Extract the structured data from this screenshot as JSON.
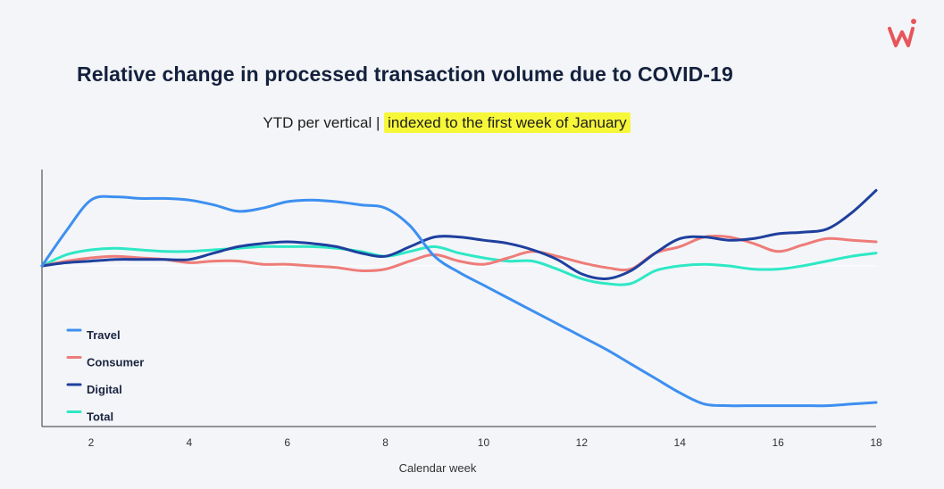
{
  "logo": {
    "icon": "brand-w-icon",
    "color": "#e8555a"
  },
  "chart_data": {
    "type": "line",
    "title": "Relative change in processed transaction volume due to COVID-19",
    "subtitle_prefix": "YTD per vertical | ",
    "subtitle_highlight": "indexed to the first week of January",
    "xlabel": "Calendar week",
    "ylabel": "",
    "xlim": [
      1,
      18
    ],
    "ylim": [
      -1.0,
      0.6
    ],
    "x_ticks": [
      2,
      4,
      6,
      8,
      10,
      12,
      14,
      16,
      18
    ],
    "baseline": 0,
    "x": [
      1,
      1.5,
      2,
      2.5,
      3,
      3.5,
      4,
      4.5,
      5,
      5.5,
      6,
      6.5,
      7,
      7.5,
      8,
      8.5,
      9,
      9.5,
      10,
      10.5,
      11,
      11.5,
      12,
      12.5,
      13,
      13.5,
      14,
      14.5,
      15,
      15.5,
      16,
      16.5,
      17,
      17.5,
      18
    ],
    "series": [
      {
        "name": "Travel",
        "color": "#3d8ff0",
        "values": [
          0.0,
          0.22,
          0.41,
          0.43,
          0.42,
          0.42,
          0.41,
          0.38,
          0.34,
          0.36,
          0.4,
          0.41,
          0.4,
          0.38,
          0.36,
          0.25,
          0.06,
          -0.04,
          -0.12,
          -0.2,
          -0.28,
          -0.36,
          -0.44,
          -0.52,
          -0.61,
          -0.7,
          -0.79,
          -0.86,
          -0.87,
          -0.87,
          -0.87,
          -0.87,
          -0.87,
          -0.86,
          -0.85
        ]
      },
      {
        "name": "Consumer",
        "color": "#ee7c78",
        "values": [
          0.0,
          0.03,
          0.05,
          0.06,
          0.05,
          0.04,
          0.02,
          0.03,
          0.03,
          0.01,
          0.01,
          0.0,
          -0.01,
          -0.03,
          -0.02,
          0.03,
          0.07,
          0.03,
          0.01,
          0.05,
          0.09,
          0.06,
          0.02,
          -0.01,
          -0.02,
          0.08,
          0.12,
          0.18,
          0.18,
          0.14,
          0.09,
          0.13,
          0.17,
          0.16,
          0.15
        ]
      },
      {
        "name": "Digital",
        "color": "#1e3f9e",
        "values": [
          0.0,
          0.02,
          0.03,
          0.04,
          0.04,
          0.04,
          0.04,
          0.08,
          0.12,
          0.14,
          0.15,
          0.14,
          0.12,
          0.08,
          0.06,
          0.12,
          0.18,
          0.18,
          0.16,
          0.14,
          0.1,
          0.04,
          -0.05,
          -0.08,
          -0.03,
          0.08,
          0.17,
          0.18,
          0.16,
          0.17,
          0.2,
          0.21,
          0.23,
          0.33,
          0.47
        ]
      },
      {
        "name": "Total",
        "color": "#2ee8c5",
        "values": [
          0.0,
          0.07,
          0.1,
          0.11,
          0.1,
          0.09,
          0.09,
          0.1,
          0.11,
          0.12,
          0.12,
          0.12,
          0.11,
          0.09,
          0.06,
          0.09,
          0.12,
          0.08,
          0.05,
          0.03,
          0.03,
          -0.02,
          -0.08,
          -0.11,
          -0.11,
          -0.03,
          0.0,
          0.01,
          0.0,
          -0.02,
          -0.02,
          0.0,
          0.03,
          0.06,
          0.08
        ]
      }
    ]
  }
}
